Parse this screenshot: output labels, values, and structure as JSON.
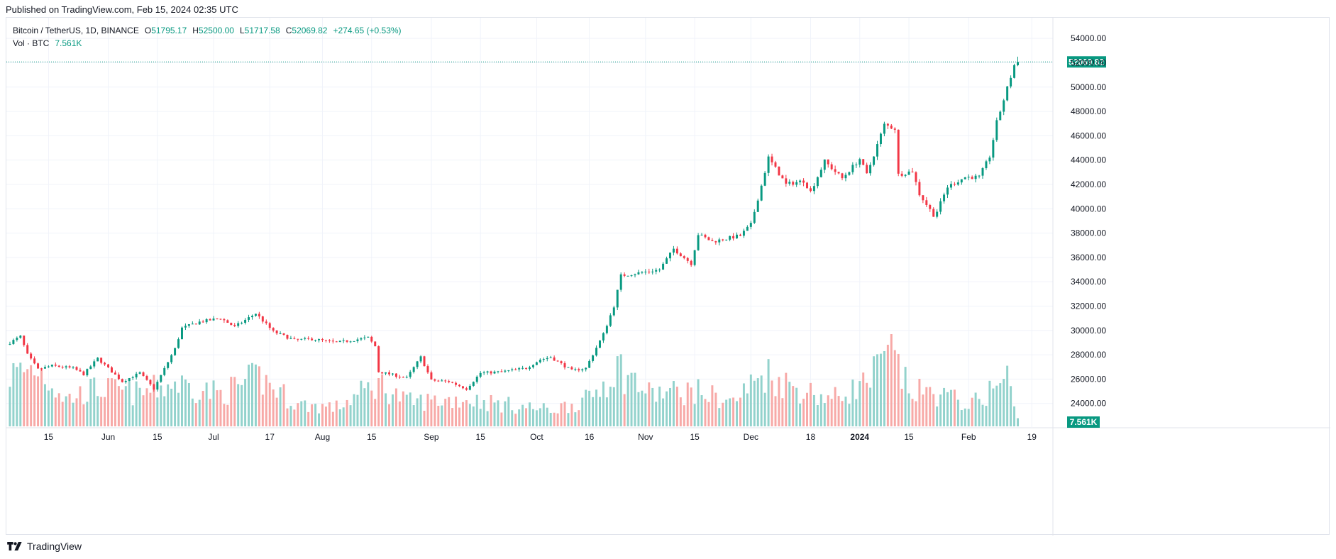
{
  "header": {
    "published": "Published on TradingView.com, Feb 15, 2024 02:35 UTC"
  },
  "legend": {
    "symbol": "Bitcoin / TetherUS, 1D, BINANCE",
    "open_label": "O",
    "open": "51795.17",
    "high_label": "H",
    "high": "52500.00",
    "low_label": "L",
    "low": "51717.58",
    "close_label": "C",
    "close": "52069.82",
    "change": "+274.65 (+0.53%)",
    "vol_label": "Vol · BTC",
    "vol_value": "7.561K"
  },
  "footer": {
    "brand": "TradingView"
  },
  "colors": {
    "up": "#089981",
    "down": "#f23645",
    "vol_up": "#92d2cc",
    "vol_down": "#f7a9a7",
    "grid": "#f0f3fa"
  },
  "chart_data": {
    "type": "candlestick",
    "y_axis_ticks": [
      "24000.00",
      "26000.00",
      "28000.00",
      "30000.00",
      "32000.00",
      "34000.00",
      "36000.00",
      "38000.00",
      "40000.00",
      "42000.00",
      "44000.00",
      "46000.00",
      "48000.00",
      "50000.00",
      "52000.00",
      "54000.00"
    ],
    "ylim": [
      22000,
      55700
    ],
    "x_axis_ticks": [
      "15",
      "Jun",
      "15",
      "Jul",
      "17",
      "Aug",
      "15",
      "Sep",
      "15",
      "Oct",
      "16",
      "Nov",
      "15",
      "Dec",
      "18",
      "2024",
      "15",
      "Feb",
      "19"
    ],
    "x_ticks_bold": [
      "2024"
    ],
    "x_range": [
      "2023-05-03",
      "2024-02-25"
    ],
    "last_price_label": "52069.82",
    "last_volume_label": "7.561K",
    "price_path": [
      [
        "2023-05-04",
        29000
      ],
      [
        "2023-05-07",
        29500
      ],
      [
        "2023-05-09",
        28000
      ],
      [
        "2023-05-12",
        26800
      ],
      [
        "2023-05-16",
        27100
      ],
      [
        "2023-05-22",
        26900
      ],
      [
        "2023-05-25",
        26400
      ],
      [
        "2023-05-29",
        27700
      ],
      [
        "2023-06-05",
        25800
      ],
      [
        "2023-06-10",
        26500
      ],
      [
        "2023-06-14",
        25200
      ],
      [
        "2023-06-16",
        26300
      ],
      [
        "2023-06-20",
        28500
      ],
      [
        "2023-06-22",
        30200
      ],
      [
        "2023-06-27",
        30700
      ],
      [
        "2023-07-03",
        31000
      ],
      [
        "2023-07-07",
        30300
      ],
      [
        "2023-07-13",
        31400
      ],
      [
        "2023-07-18",
        29900
      ],
      [
        "2023-07-24",
        29200
      ],
      [
        "2023-07-29",
        29300
      ],
      [
        "2023-08-05",
        29000
      ],
      [
        "2023-08-14",
        29400
      ],
      [
        "2023-08-16",
        28700
      ],
      [
        "2023-08-17",
        26600
      ],
      [
        "2023-08-25",
        26100
      ],
      [
        "2023-08-29",
        27800
      ],
      [
        "2023-09-01",
        25900
      ],
      [
        "2023-09-06",
        25800
      ],
      [
        "2023-09-11",
        25200
      ],
      [
        "2023-09-15",
        26500
      ],
      [
        "2023-09-21",
        26600
      ],
      [
        "2023-09-28",
        26900
      ],
      [
        "2023-10-02",
        27600
      ],
      [
        "2023-10-05",
        27800
      ],
      [
        "2023-10-11",
        26700
      ],
      [
        "2023-10-15",
        26900
      ],
      [
        "2023-10-20",
        29700
      ],
      [
        "2023-10-23",
        32000
      ],
      [
        "2023-10-25",
        34500
      ],
      [
        "2023-11-05",
        35000
      ],
      [
        "2023-11-09",
        36700
      ],
      [
        "2023-11-14",
        35500
      ],
      [
        "2023-11-16",
        37900
      ],
      [
        "2023-11-20",
        37300
      ],
      [
        "2023-11-28",
        37800
      ],
      [
        "2023-12-01",
        38700
      ],
      [
        "2023-12-04",
        41900
      ],
      [
        "2023-12-06",
        44200
      ],
      [
        "2023-12-11",
        42000
      ],
      [
        "2023-12-16",
        42300
      ],
      [
        "2023-12-18",
        41400
      ],
      [
        "2023-12-22",
        43900
      ],
      [
        "2023-12-27",
        42500
      ],
      [
        "2024-01-01",
        44100
      ],
      [
        "2024-01-03",
        42800
      ],
      [
        "2024-01-08",
        46900
      ],
      [
        "2024-01-11",
        46600
      ],
      [
        "2024-01-12",
        42800
      ],
      [
        "2024-01-16",
        43100
      ],
      [
        "2024-01-18",
        41200
      ],
      [
        "2024-01-22",
        39500
      ],
      [
        "2024-01-23",
        39800
      ],
      [
        "2024-01-26",
        41800
      ],
      [
        "2024-01-31",
        42600
      ],
      [
        "2024-02-04",
        42600
      ],
      [
        "2024-02-07",
        44300
      ],
      [
        "2024-02-09",
        47100
      ],
      [
        "2024-02-12",
        49900
      ],
      [
        "2024-02-14",
        51800
      ],
      [
        "2024-02-15",
        52069.82
      ]
    ],
    "volume_path": [
      [
        "2023-05-04",
        19
      ],
      [
        "2023-05-12",
        22
      ],
      [
        "2023-05-20",
        10
      ],
      [
        "2023-05-29",
        14
      ],
      [
        "2023-06-10",
        12
      ],
      [
        "2023-06-20",
        16
      ],
      [
        "2023-07-03",
        12
      ],
      [
        "2023-07-14",
        18
      ],
      [
        "2023-07-25",
        8
      ],
      [
        "2023-08-05",
        7
      ],
      [
        "2023-08-17",
        16
      ],
      [
        "2023-08-25",
        9
      ],
      [
        "2023-09-11",
        10
      ],
      [
        "2023-09-22",
        8
      ],
      [
        "2023-10-05",
        6
      ],
      [
        "2023-10-16",
        10
      ],
      [
        "2023-10-24",
        22
      ],
      [
        "2023-11-02",
        12
      ],
      [
        "2023-11-15",
        13
      ],
      [
        "2023-11-26",
        9
      ],
      [
        "2023-12-05",
        20
      ],
      [
        "2023-12-12",
        15
      ],
      [
        "2023-12-24",
        10
      ],
      [
        "2024-01-03",
        16
      ],
      [
        "2024-01-10",
        27
      ],
      [
        "2024-01-15",
        13
      ],
      [
        "2024-01-23",
        12
      ],
      [
        "2024-02-02",
        8
      ],
      [
        "2024-02-12",
        18
      ],
      [
        "2024-02-15",
        3
      ]
    ],
    "volume_scale_max": 34
  }
}
